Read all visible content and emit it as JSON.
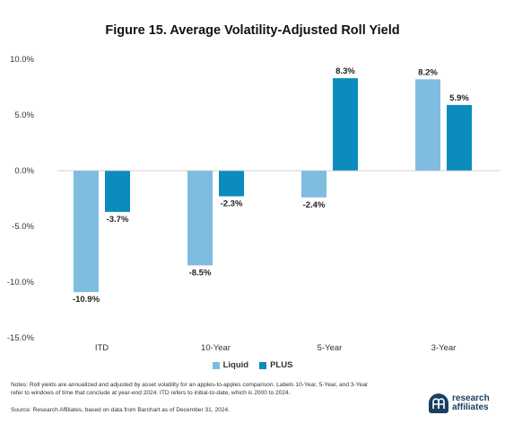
{
  "chart_data": {
    "type": "bar",
    "title": "Figure 15. Average Volatility-Adjusted Roll Yield",
    "xlabel": "",
    "ylabel": "",
    "categories": [
      "ITD",
      "10-Year",
      "5-Year",
      "3-Year"
    ],
    "series": [
      {
        "name": "Liquid",
        "color": "#7fbde0",
        "values": [
          -10.9,
          -8.5,
          -2.4,
          8.2
        ],
        "labels": [
          "-10.9%",
          "-8.5%",
          "-2.4%",
          "8.2%"
        ]
      },
      {
        "name": "PLUS",
        "color": "#0a8cbd",
        "values": [
          -3.7,
          -2.3,
          8.3,
          5.9
        ],
        "labels": [
          "-3.7%",
          "-2.3%",
          "8.3%",
          "5.9%"
        ]
      }
    ],
    "ylim": [
      -15,
      10
    ],
    "yticks": [
      10,
      5,
      0,
      -5,
      -10,
      -15
    ],
    "ytick_labels": [
      "10.0%",
      "5.0%",
      "0.0%",
      "-5.0%",
      "-10.0%",
      "-15.0%"
    ],
    "grid": false,
    "legend_position": "bottom-center"
  },
  "notes": "Notes: Roll yields are annualized and adjusted by asset volatility for an apples-to-apples comparison. Labels 10-Year, 5-Year, and 3-Year refer to windows of time that conclude at year-end 2024. ITD refers to initial-to-date, which is 2000 to 2024.",
  "source": "Source: Research Affiliates, based on data from Barchart as of December 31, 2024.",
  "brand": {
    "line1": "research",
    "line2": "affiliates",
    "color": "#1c3f60"
  }
}
